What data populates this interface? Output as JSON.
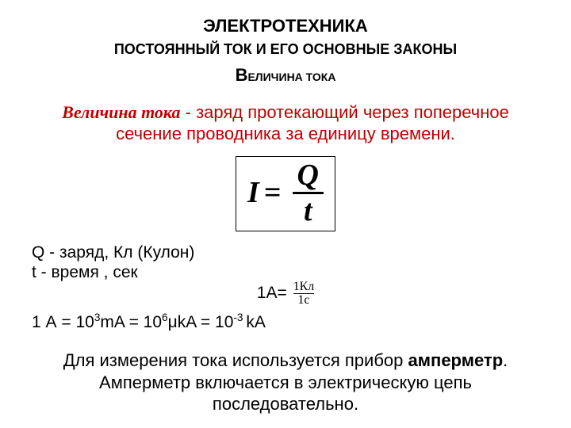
{
  "header": {
    "line1": "ЭЛЕКТРОТЕХНИКА",
    "line2": "ПОСТОЯННЫЙ ТОК И ЕГО ОСНОВНЫЕ ЗАКОНЫ",
    "line3_big": "В",
    "line3_rest": "ЕЛИЧИНА ТОКА"
  },
  "definition": {
    "term": "Величина тока",
    "dash": " - ",
    "text1": "заряд протекающий через поперечное",
    "text2": "сечение проводника за единицу времени."
  },
  "formula": {
    "lhs": "I",
    "eq": " = ",
    "num": "Q",
    "den": "t"
  },
  "legend": {
    "q": "Q - заряд, Кл  (Кулон)",
    "t": "t - время , сек"
  },
  "unitdef": {
    "prefix": "1A= ",
    "num": "1Кл",
    "den": "1с"
  },
  "conversion": {
    "p1": "1 А = 10",
    "e1": "3",
    "p2": "mA = 10",
    "e2": "6",
    "p3": "μkA = 10",
    "e3": "-3 ",
    "p4": "kA"
  },
  "footer": {
    "line1a": "Для измерения тока используется прибор ",
    "line1b": "амперметр",
    "line1c": ".",
    "line2": "Амперметр включается в электрическую цепь",
    "line3": "последовательно."
  },
  "style": {
    "accent_color": "#c00000",
    "text_color": "#000000",
    "background": "#ffffff"
  }
}
